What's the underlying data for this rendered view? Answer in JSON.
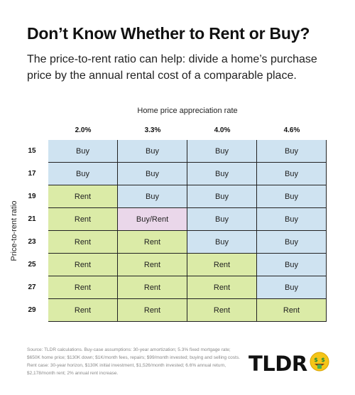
{
  "header": {
    "title": "Don’t Know Whether to Rent or Buy?",
    "subtitle": "The price-to-rent ratio can help: divide a home’s purchase price by the annual rental cost of a comparable place."
  },
  "chart_data": {
    "type": "table",
    "col_axis_label": "Home price appreciation rate",
    "row_axis_label": "Price-to-rent ratio",
    "columns": [
      "2.0%",
      "3.3%",
      "4.0%",
      "4.6%"
    ],
    "rows": [
      {
        "ratio": "15",
        "cells": [
          "Buy",
          "Buy",
          "Buy",
          "Buy"
        ]
      },
      {
        "ratio": "17",
        "cells": [
          "Buy",
          "Buy",
          "Buy",
          "Buy"
        ]
      },
      {
        "ratio": "19",
        "cells": [
          "Rent",
          "Buy",
          "Buy",
          "Buy"
        ]
      },
      {
        "ratio": "21",
        "cells": [
          "Rent",
          "Buy/Rent",
          "Buy",
          "Buy"
        ]
      },
      {
        "ratio": "23",
        "cells": [
          "Rent",
          "Rent",
          "Buy",
          "Buy"
        ]
      },
      {
        "ratio": "25",
        "cells": [
          "Rent",
          "Rent",
          "Rent",
          "Buy"
        ]
      },
      {
        "ratio": "27",
        "cells": [
          "Rent",
          "Rent",
          "Rent",
          "Buy"
        ]
      },
      {
        "ratio": "29",
        "cells": [
          "Rent",
          "Rent",
          "Rent",
          "Rent"
        ]
      }
    ],
    "colors": {
      "Buy": "#cfe3f1",
      "Rent": "#dbeba7",
      "Buy/Rent": "#ead7ea"
    }
  },
  "footer": {
    "source": "Source: TLDR calculations. Buy-case assumptions: 30-year amortization; 5.3% fixed mortgage rate; $650K home price; $130K down; $1K/month fees, repairs; $99/month invested; buying and selling costs. Rent case: 30-year horizon, $130K initial investment, $1,526/month invested; 6.6% annual return, $2,178/month rent; 2% annual rent increase.",
    "logo_text": "TLDR",
    "logo_icon": "money-face-emoji-icon"
  }
}
